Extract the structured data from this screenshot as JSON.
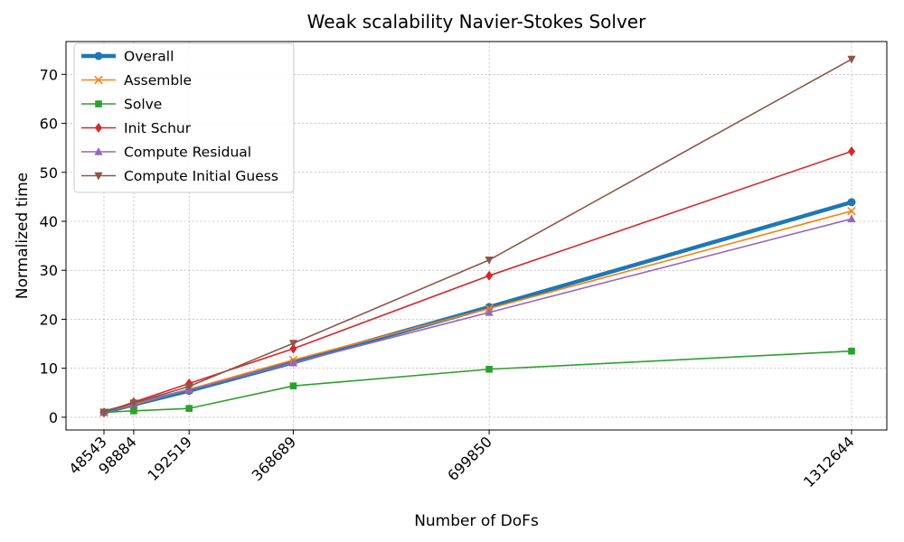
{
  "chart_data": {
    "type": "line",
    "title": "Weak scalability Navier-Stokes Solver",
    "xlabel": "Number of DoFs",
    "ylabel": "Normalized time",
    "x": [
      48543,
      98884,
      192519,
      368689,
      699850,
      1312644
    ],
    "x_tick_labels": [
      "48543",
      "98884",
      "192519",
      "368689",
      "699850",
      "1312644"
    ],
    "yticks": [
      0,
      10,
      20,
      30,
      40,
      50,
      60,
      70
    ],
    "ylim": [
      -2.6,
      76.7
    ],
    "grid": true,
    "legend_position": "upper-left",
    "series": [
      {
        "name": "Overall",
        "color": "#1f77b4",
        "marker": "circle",
        "emphasis": true,
        "values": [
          1.0,
          2.6,
          5.4,
          11.2,
          22.5,
          43.9
        ]
      },
      {
        "name": "Assemble",
        "color": "#ff7f0e",
        "marker": "x",
        "values": [
          1.0,
          2.6,
          5.7,
          11.7,
          22.2,
          42.1
        ]
      },
      {
        "name": "Solve",
        "color": "#2ca02c",
        "marker": "square",
        "values": [
          1.0,
          1.3,
          1.8,
          6.4,
          9.8,
          13.5
        ]
      },
      {
        "name": "Init Schur",
        "color": "#d62728",
        "marker": "diamond",
        "values": [
          1.0,
          3.1,
          6.9,
          14.0,
          28.9,
          54.3
        ]
      },
      {
        "name": "Compute Residual",
        "color": "#9467bd",
        "marker": "triangle-up",
        "values": [
          1.0,
          2.8,
          5.6,
          11.1,
          21.4,
          40.5
        ]
      },
      {
        "name": "Compute Initial Guess",
        "color": "#8c564b",
        "marker": "triangle-down",
        "values": [
          1.0,
          2.9,
          6.3,
          15.1,
          32.1,
          73.1
        ]
      }
    ]
  }
}
